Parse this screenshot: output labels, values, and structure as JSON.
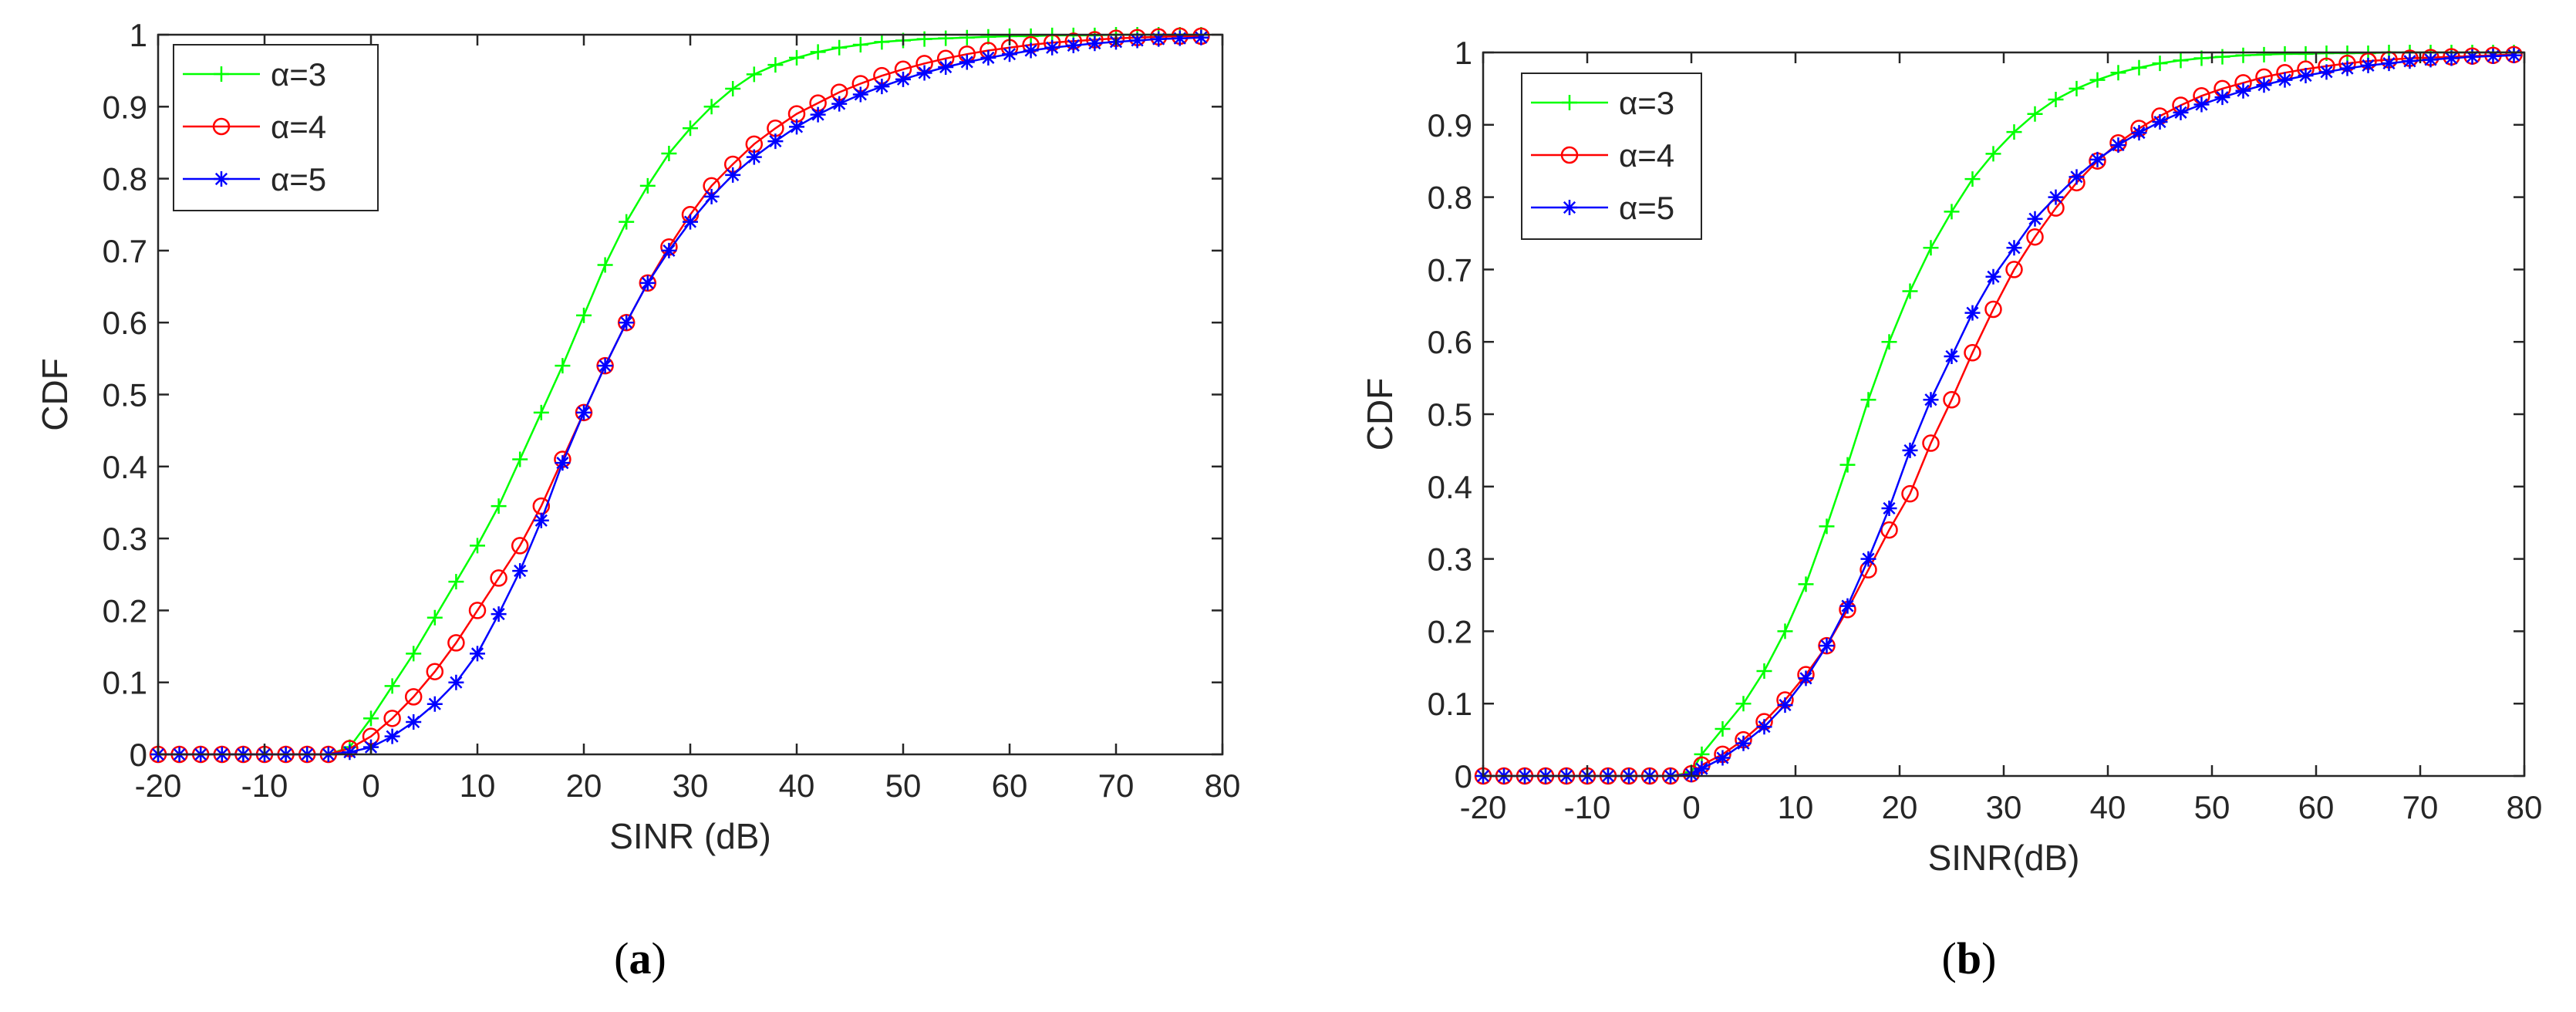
{
  "chart_data": [
    {
      "type": "line",
      "xlabel": "SINR (dB)",
      "ylabel": "CDF",
      "xlim": [
        -20,
        80
      ],
      "ylim": [
        0,
        1
      ],
      "xticks": [
        "-20",
        "-10",
        "0",
        "10",
        "20",
        "30",
        "40",
        "50",
        "60",
        "70",
        "80"
      ],
      "yticks": [
        "0",
        "0.1",
        "0.2",
        "0.3",
        "0.4",
        "0.5",
        "0.6",
        "0.7",
        "0.8",
        "0.9",
        "1"
      ],
      "grid": false,
      "legend_position": "top-left",
      "caption_letter": "a",
      "series": [
        {
          "name": "α=3",
          "color": "#00ff00",
          "marker": "plus",
          "x": [
            -20,
            -18,
            -16,
            -14,
            -12,
            -10,
            -8,
            -6,
            -4,
            -2,
            0,
            2,
            4,
            6,
            8,
            10,
            12,
            14,
            16,
            18,
            20,
            22,
            24,
            26,
            28,
            30,
            32,
            34,
            36,
            38,
            40,
            42,
            44,
            46,
            48,
            50,
            52,
            54,
            56,
            58,
            60,
            62,
            64,
            66,
            68,
            70,
            72,
            74,
            76,
            78
          ],
          "y": [
            0,
            0,
            0,
            0,
            0,
            0,
            0,
            0,
            0,
            0.01,
            0.05,
            0.095,
            0.14,
            0.19,
            0.24,
            0.29,
            0.345,
            0.41,
            0.475,
            0.54,
            0.61,
            0.68,
            0.74,
            0.79,
            0.835,
            0.87,
            0.9,
            0.925,
            0.945,
            0.958,
            0.968,
            0.976,
            0.982,
            0.986,
            0.99,
            0.992,
            0.994,
            0.995,
            0.996,
            0.997,
            0.998,
            0.998,
            0.999,
            0.999,
            0.999,
            1,
            1,
            1,
            1,
            1
          ]
        },
        {
          "name": "α=4",
          "color": "#ff0000",
          "marker": "circle",
          "x": [
            -20,
            -18,
            -16,
            -14,
            -12,
            -10,
            -8,
            -6,
            -4,
            -2,
            0,
            2,
            4,
            6,
            8,
            10,
            12,
            14,
            16,
            18,
            20,
            22,
            24,
            26,
            28,
            30,
            32,
            34,
            36,
            38,
            40,
            42,
            44,
            46,
            48,
            50,
            52,
            54,
            56,
            58,
            60,
            62,
            64,
            66,
            68,
            70,
            72,
            74,
            76,
            78
          ],
          "y": [
            0,
            0,
            0,
            0,
            0,
            0,
            0,
            0,
            0,
            0.008,
            0.025,
            0.05,
            0.08,
            0.115,
            0.155,
            0.2,
            0.245,
            0.29,
            0.345,
            0.41,
            0.475,
            0.54,
            0.6,
            0.655,
            0.705,
            0.75,
            0.79,
            0.82,
            0.848,
            0.87,
            0.89,
            0.905,
            0.92,
            0.932,
            0.943,
            0.952,
            0.96,
            0.967,
            0.973,
            0.978,
            0.982,
            0.986,
            0.989,
            0.991,
            0.993,
            0.995,
            0.996,
            0.997,
            0.998,
            0.998
          ]
        },
        {
          "name": "α=5",
          "color": "#0000ff",
          "marker": "asterisk",
          "x": [
            -20,
            -18,
            -16,
            -14,
            -12,
            -10,
            -8,
            -6,
            -4,
            -2,
            0,
            2,
            4,
            6,
            8,
            10,
            12,
            14,
            16,
            18,
            20,
            22,
            24,
            26,
            28,
            30,
            32,
            34,
            36,
            38,
            40,
            42,
            44,
            46,
            48,
            50,
            52,
            54,
            56,
            58,
            60,
            62,
            64,
            66,
            68,
            70,
            72,
            74,
            76,
            78
          ],
          "y": [
            0,
            0,
            0,
            0,
            0,
            0,
            0,
            0,
            0,
            0.003,
            0.01,
            0.025,
            0.045,
            0.07,
            0.1,
            0.14,
            0.195,
            0.255,
            0.325,
            0.405,
            0.475,
            0.54,
            0.6,
            0.655,
            0.7,
            0.74,
            0.775,
            0.805,
            0.83,
            0.852,
            0.872,
            0.889,
            0.904,
            0.917,
            0.928,
            0.938,
            0.947,
            0.955,
            0.962,
            0.968,
            0.973,
            0.978,
            0.982,
            0.985,
            0.988,
            0.99,
            0.992,
            0.994,
            0.995,
            0.996
          ]
        }
      ]
    },
    {
      "type": "line",
      "xlabel": "SINR(dB)",
      "ylabel": "CDF",
      "xlim": [
        -20,
        80
      ],
      "ylim": [
        0,
        1
      ],
      "xticks": [
        "-20",
        "-10",
        "0",
        "10",
        "20",
        "30",
        "40",
        "50",
        "60",
        "70",
        "80"
      ],
      "yticks": [
        "0",
        "0.1",
        "0.2",
        "0.3",
        "0.4",
        "0.5",
        "0.6",
        "0.7",
        "0.8",
        "0.9",
        "1"
      ],
      "grid": false,
      "legend_position": "top-left",
      "caption_letter": "b",
      "series": [
        {
          "name": "α=3",
          "color": "#00ff00",
          "marker": "plus",
          "x": [
            -20,
            -18,
            -16,
            -14,
            -12,
            -10,
            -8,
            -6,
            -4,
            -2,
            0,
            1,
            3,
            5,
            7,
            9,
            11,
            13,
            15,
            17,
            19,
            21,
            23,
            25,
            27,
            29,
            31,
            33,
            35,
            37,
            39,
            41,
            43,
            45,
            47,
            49,
            51,
            53,
            55,
            57,
            59,
            61,
            63,
            65,
            67,
            69,
            71,
            73,
            75,
            77,
            79
          ],
          "y": [
            0,
            0,
            0,
            0,
            0,
            0,
            0,
            0,
            0,
            0,
            0.005,
            0.03,
            0.065,
            0.1,
            0.145,
            0.2,
            0.265,
            0.345,
            0.43,
            0.52,
            0.6,
            0.67,
            0.73,
            0.78,
            0.825,
            0.86,
            0.89,
            0.915,
            0.935,
            0.95,
            0.962,
            0.972,
            0.979,
            0.985,
            0.989,
            0.992,
            0.994,
            0.996,
            0.997,
            0.998,
            0.998,
            0.999,
            0.999,
            0.999,
            1,
            1,
            1,
            1,
            1,
            1,
            1
          ]
        },
        {
          "name": "α=4",
          "color": "#ff0000",
          "marker": "circle",
          "x": [
            -20,
            -18,
            -16,
            -14,
            -12,
            -10,
            -8,
            -6,
            -4,
            -2,
            0,
            1,
            3,
            5,
            7,
            9,
            11,
            13,
            15,
            17,
            19,
            21,
            23,
            25,
            27,
            29,
            31,
            33,
            35,
            37,
            39,
            41,
            43,
            45,
            47,
            49,
            51,
            53,
            55,
            57,
            59,
            61,
            63,
            65,
            67,
            69,
            71,
            73,
            75,
            77,
            79
          ],
          "y": [
            0,
            0,
            0,
            0,
            0,
            0,
            0,
            0,
            0,
            0,
            0.003,
            0.015,
            0.03,
            0.05,
            0.075,
            0.105,
            0.14,
            0.18,
            0.23,
            0.285,
            0.34,
            0.39,
            0.46,
            0.52,
            0.585,
            0.645,
            0.7,
            0.745,
            0.785,
            0.82,
            0.85,
            0.875,
            0.895,
            0.912,
            0.927,
            0.94,
            0.95,
            0.958,
            0.966,
            0.972,
            0.977,
            0.981,
            0.985,
            0.988,
            0.99,
            0.992,
            0.993,
            0.994,
            0.995,
            0.996,
            0.997
          ]
        },
        {
          "name": "α=5",
          "color": "#0000ff",
          "marker": "asterisk",
          "x": [
            -20,
            -18,
            -16,
            -14,
            -12,
            -10,
            -8,
            -6,
            -4,
            -2,
            0,
            1,
            3,
            5,
            7,
            9,
            11,
            13,
            15,
            17,
            19,
            21,
            23,
            25,
            27,
            29,
            31,
            33,
            35,
            37,
            39,
            41,
            43,
            45,
            47,
            49,
            51,
            53,
            55,
            57,
            59,
            61,
            63,
            65,
            67,
            69,
            71,
            73,
            75,
            77,
            79
          ],
          "y": [
            0,
            0,
            0,
            0,
            0,
            0,
            0,
            0,
            0,
            0,
            0.002,
            0.01,
            0.025,
            0.045,
            0.068,
            0.098,
            0.135,
            0.18,
            0.235,
            0.3,
            0.37,
            0.45,
            0.52,
            0.58,
            0.64,
            0.69,
            0.73,
            0.77,
            0.8,
            0.828,
            0.852,
            0.872,
            0.889,
            0.904,
            0.917,
            0.928,
            0.938,
            0.947,
            0.955,
            0.962,
            0.968,
            0.973,
            0.978,
            0.982,
            0.985,
            0.988,
            0.99,
            0.992,
            0.994,
            0.995,
            0.996
          ]
        }
      ]
    }
  ]
}
